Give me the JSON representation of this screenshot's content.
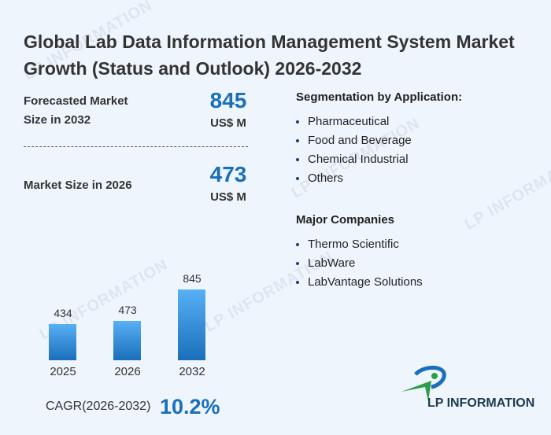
{
  "title": "Global Lab Data Information Management System Market Growth (Status and Outlook) 2026-2032",
  "forecast": {
    "label": "Forecasted Market Size in 2032",
    "value": "845",
    "unit": "US$ M"
  },
  "current": {
    "label": "Market Size in 2026",
    "value": "473",
    "unit": "US$ M"
  },
  "segmentation": {
    "title": "Segmentation by Application:",
    "items": [
      "Pharmaceutical",
      "Food and Beverage",
      "Chemical Industrial",
      "Others"
    ]
  },
  "companies": {
    "title": "Major Companies",
    "items": [
      "Thermo Scientific",
      "LabWare",
      "LabVantage Solutions"
    ]
  },
  "cagr": {
    "label": "CAGR(2026-2032)",
    "value": "10.2%"
  },
  "logo": {
    "text": "LP INFORMATION"
  },
  "watermark": "LP INFORMATION",
  "colors": {
    "accent": "#1a6fba",
    "bar_top": "#58b0f5",
    "bar_bottom": "#1a6fba"
  },
  "chart_data": {
    "type": "bar",
    "categories": [
      "2025",
      "2026",
      "2032"
    ],
    "values": [
      434,
      473,
      845
    ],
    "title": "",
    "xlabel": "",
    "ylabel": "",
    "ylim": [
      0,
      845
    ]
  }
}
